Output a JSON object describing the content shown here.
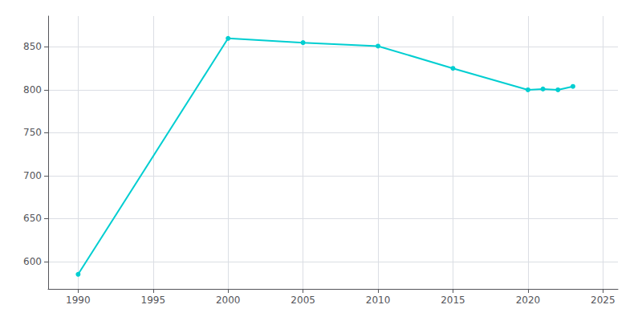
{
  "chart_data": {
    "type": "line",
    "x": [
      1990,
      2000,
      2005,
      2010,
      2015,
      2020,
      2021,
      2022,
      2023
    ],
    "values": [
      585,
      860,
      855,
      851,
      825,
      800,
      801,
      800,
      804
    ],
    "color": "#00CED1",
    "marker": "circle",
    "xlim": [
      1988,
      2026
    ],
    "xticks": [
      1990,
      1995,
      2000,
      2005,
      2010,
      2015,
      2020,
      2025
    ],
    "ylim": [
      568,
      886
    ],
    "yticks": [
      600,
      650,
      700,
      750,
      800,
      850
    ],
    "grid": true
  }
}
